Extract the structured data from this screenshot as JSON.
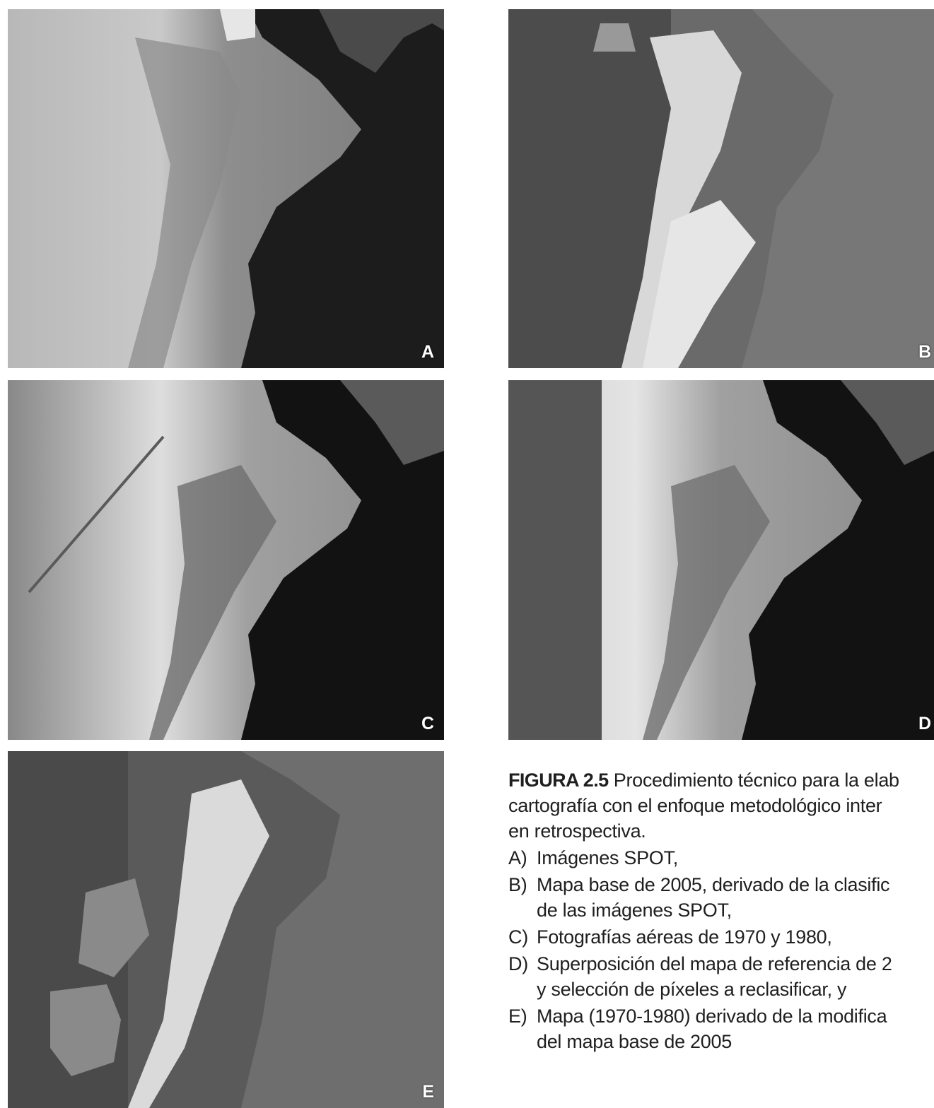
{
  "panels": [
    {
      "id": "A",
      "label": "A"
    },
    {
      "id": "B",
      "label": "B"
    },
    {
      "id": "C",
      "label": "C"
    },
    {
      "id": "D",
      "label": "D"
    },
    {
      "id": "E",
      "label": "E"
    }
  ],
  "caption": {
    "figure_number": "FIGURA 2.5",
    "lines": [
      "Procedimiento técnico para la elab",
      "cartografía con el enfoque metodológico inter",
      "en retrospectiva."
    ],
    "items": [
      {
        "key": "A)",
        "lines": [
          "Imágenes SPOT,"
        ]
      },
      {
        "key": "B)",
        "lines": [
          "Mapa base de 2005, derivado de la clasific",
          "de las imágenes SPOT,"
        ]
      },
      {
        "key": "C)",
        "lines": [
          "Fotografías aéreas de 1970 y 1980,"
        ]
      },
      {
        "key": "D)",
        "lines": [
          "Superposición del mapa de referencia de 2",
          "y selección de píxeles a reclasificar, y"
        ]
      },
      {
        "key": "E)",
        "lines": [
          "Mapa (1970-1980) derivado de la modifica",
          "del mapa base de 2005"
        ]
      }
    ]
  }
}
